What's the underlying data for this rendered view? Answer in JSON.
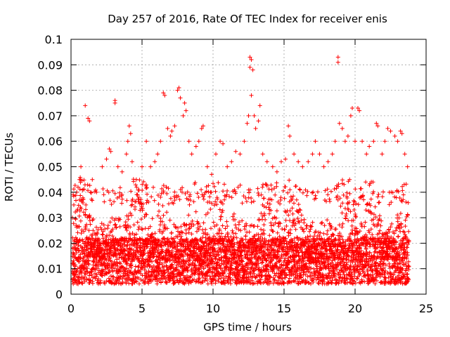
{
  "chart_data": {
    "type": "scatter",
    "title": "Day 257 of 2016, Rate Of TEC Index for receiver enis",
    "xlabel": "GPS time / hours",
    "ylabel": "ROTI / TECUs",
    "xlim": [
      0,
      25
    ],
    "ylim": [
      0,
      0.1
    ],
    "xticks": [
      0,
      5,
      10,
      15,
      20,
      25
    ],
    "xtick_labels": [
      "0",
      "5",
      "10",
      "15",
      "20",
      "25"
    ],
    "yticks": [
      0,
      0.01,
      0.02,
      0.03,
      0.04,
      0.05,
      0.06,
      0.07,
      0.08,
      0.09,
      0.1
    ],
    "ytick_labels": [
      "0",
      "0.01",
      "0.02",
      "0.03",
      "0.04",
      "0.05",
      "0.06",
      "0.07",
      "0.08",
      "0.09",
      "0.1"
    ],
    "grid": true,
    "marker": "+",
    "color": "#ff0000",
    "series": [
      {
        "name": "ROTI",
        "points": [
          [
            0.1,
            0.03
          ],
          [
            0.2,
            0.035
          ],
          [
            0.4,
            0.04
          ],
          [
            0.6,
            0.045
          ],
          [
            0.7,
            0.05
          ],
          [
            1.0,
            0.074
          ],
          [
            1.2,
            0.069
          ],
          [
            1.3,
            0.068
          ],
          [
            1.5,
            0.045
          ],
          [
            1.8,
            0.04
          ],
          [
            2.2,
            0.05
          ],
          [
            2.5,
            0.053
          ],
          [
            2.7,
            0.057
          ],
          [
            2.8,
            0.056
          ],
          [
            3.1,
            0.076
          ],
          [
            3.1,
            0.075
          ],
          [
            3.3,
            0.05
          ],
          [
            3.6,
            0.048
          ],
          [
            3.9,
            0.055
          ],
          [
            4.0,
            0.06
          ],
          [
            4.1,
            0.066
          ],
          [
            4.2,
            0.063
          ],
          [
            4.3,
            0.052
          ],
          [
            4.6,
            0.045
          ],
          [
            5.0,
            0.05
          ],
          [
            5.3,
            0.06
          ],
          [
            5.6,
            0.05
          ],
          [
            5.9,
            0.052
          ],
          [
            6.1,
            0.055
          ],
          [
            6.3,
            0.06
          ],
          [
            6.5,
            0.079
          ],
          [
            6.6,
            0.078
          ],
          [
            6.8,
            0.065
          ],
          [
            7.0,
            0.062
          ],
          [
            7.1,
            0.064
          ],
          [
            7.3,
            0.066
          ],
          [
            7.5,
            0.08
          ],
          [
            7.6,
            0.081
          ],
          [
            7.7,
            0.077
          ],
          [
            7.9,
            0.07
          ],
          [
            8.0,
            0.075
          ],
          [
            8.1,
            0.072
          ],
          [
            8.3,
            0.06
          ],
          [
            8.5,
            0.055
          ],
          [
            8.8,
            0.058
          ],
          [
            9.0,
            0.06
          ],
          [
            9.2,
            0.065
          ],
          [
            9.3,
            0.066
          ],
          [
            9.6,
            0.05
          ],
          [
            9.9,
            0.047
          ],
          [
            10.2,
            0.055
          ],
          [
            10.5,
            0.06
          ],
          [
            10.7,
            0.059
          ],
          [
            11.0,
            0.05
          ],
          [
            11.3,
            0.052
          ],
          [
            11.6,
            0.056
          ],
          [
            11.9,
            0.055
          ],
          [
            12.2,
            0.06
          ],
          [
            12.4,
            0.067
          ],
          [
            12.5,
            0.07
          ],
          [
            12.6,
            0.093
          ],
          [
            12.7,
            0.092
          ],
          [
            12.6,
            0.089
          ],
          [
            12.8,
            0.088
          ],
          [
            12.7,
            0.078
          ],
          [
            12.9,
            0.07
          ],
          [
            13.0,
            0.065
          ],
          [
            13.2,
            0.068
          ],
          [
            13.3,
            0.074
          ],
          [
            13.5,
            0.055
          ],
          [
            13.8,
            0.052
          ],
          [
            14.2,
            0.05
          ],
          [
            14.5,
            0.048
          ],
          [
            14.8,
            0.052
          ],
          [
            15.1,
            0.053
          ],
          [
            15.3,
            0.066
          ],
          [
            15.4,
            0.062
          ],
          [
            15.7,
            0.055
          ],
          [
            16.0,
            0.052
          ],
          [
            16.3,
            0.05
          ],
          [
            16.7,
            0.052
          ],
          [
            17.0,
            0.055
          ],
          [
            17.2,
            0.06
          ],
          [
            17.5,
            0.055
          ],
          [
            17.8,
            0.05
          ],
          [
            18.1,
            0.052
          ],
          [
            18.4,
            0.055
          ],
          [
            18.6,
            0.06
          ],
          [
            18.8,
            0.093
          ],
          [
            18.8,
            0.091
          ],
          [
            18.9,
            0.067
          ],
          [
            19.1,
            0.065
          ],
          [
            19.3,
            0.06
          ],
          [
            19.5,
            0.062
          ],
          [
            19.7,
            0.07
          ],
          [
            19.8,
            0.073
          ],
          [
            20.0,
            0.06
          ],
          [
            20.2,
            0.073
          ],
          [
            20.3,
            0.072
          ],
          [
            20.5,
            0.06
          ],
          [
            20.8,
            0.055
          ],
          [
            21.0,
            0.058
          ],
          [
            21.3,
            0.06
          ],
          [
            21.5,
            0.067
          ],
          [
            21.6,
            0.066
          ],
          [
            21.9,
            0.055
          ],
          [
            22.1,
            0.06
          ],
          [
            22.3,
            0.065
          ],
          [
            22.5,
            0.064
          ],
          [
            22.8,
            0.062
          ],
          [
            23.0,
            0.06
          ],
          [
            23.2,
            0.064
          ],
          [
            23.3,
            0.063
          ],
          [
            23.5,
            0.055
          ],
          [
            23.7,
            0.05
          ]
        ],
        "dense_band": {
          "x_range": [
            0.1,
            23.8
          ],
          "y_typical_range": [
            0.004,
            0.04
          ],
          "y_median": 0.014,
          "sample_interval_hours": 0.01
        }
      }
    ]
  }
}
